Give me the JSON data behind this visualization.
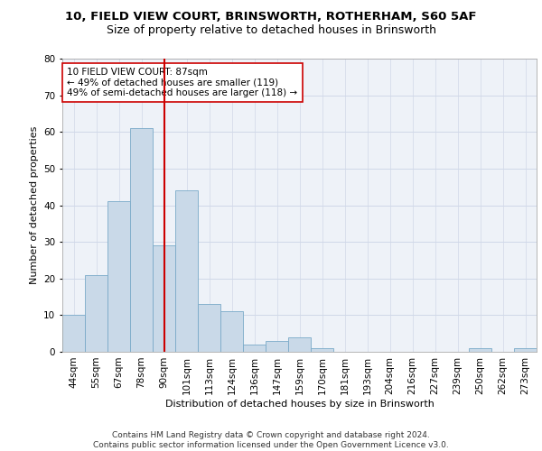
{
  "title1": "10, FIELD VIEW COURT, BRINSWORTH, ROTHERHAM, S60 5AF",
  "title2": "Size of property relative to detached houses in Brinsworth",
  "xlabel": "Distribution of detached houses by size in Brinsworth",
  "ylabel": "Number of detached properties",
  "bar_labels": [
    "44sqm",
    "55sqm",
    "67sqm",
    "78sqm",
    "90sqm",
    "101sqm",
    "113sqm",
    "124sqm",
    "136sqm",
    "147sqm",
    "159sqm",
    "170sqm",
    "181sqm",
    "193sqm",
    "204sqm",
    "216sqm",
    "227sqm",
    "239sqm",
    "250sqm",
    "262sqm",
    "273sqm"
  ],
  "bar_values": [
    10,
    21,
    41,
    61,
    29,
    44,
    13,
    11,
    2,
    3,
    4,
    1,
    0,
    0,
    0,
    0,
    0,
    0,
    1,
    0,
    1
  ],
  "bar_color": "#c9d9e8",
  "bar_edgecolor": "#7aaac8",
  "vline_x": 4.0,
  "vline_color": "#cc0000",
  "annotation_text": "10 FIELD VIEW COURT: 87sqm\n← 49% of detached houses are smaller (119)\n49% of semi-detached houses are larger (118) →",
  "annotation_box_edgecolor": "#cc0000",
  "annotation_box_facecolor": "#ffffff",
  "ylim": [
    0,
    80
  ],
  "yticks": [
    0,
    10,
    20,
    30,
    40,
    50,
    60,
    70,
    80
  ],
  "grid_color": "#d0d8e8",
  "background_color": "#eef2f8",
  "footer_text": "Contains HM Land Registry data © Crown copyright and database right 2024.\nContains public sector information licensed under the Open Government Licence v3.0.",
  "title1_fontsize": 9.5,
  "title2_fontsize": 9,
  "xlabel_fontsize": 8,
  "ylabel_fontsize": 8,
  "tick_fontsize": 7.5,
  "annotation_fontsize": 7.5,
  "footer_fontsize": 6.5
}
